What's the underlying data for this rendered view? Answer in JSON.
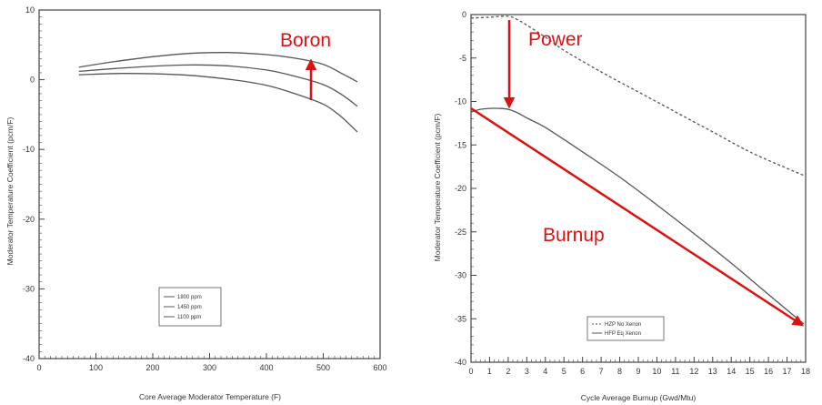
{
  "colors": {
    "annotation": "#dd1111",
    "curve": "#555555",
    "axis": "#444444"
  },
  "chart_data": [
    {
      "type": "line",
      "title": "",
      "xlabel": "Core Average Moderator Temperature (F)",
      "ylabel": "Moderator Temperature Coefficient (pcm/F)",
      "xlim": [
        0,
        600
      ],
      "ylim": [
        -40,
        10
      ],
      "xticks": [
        0,
        100,
        200,
        300,
        400,
        500,
        600
      ],
      "yticks": [
        -40,
        -30,
        -20,
        -10,
        0,
        10
      ],
      "legend_position": "bottom-center",
      "series": [
        {
          "name": "1800 ppm",
          "x": [
            70,
            150,
            250,
            330,
            400,
            450,
            500,
            530,
            560
          ],
          "y": [
            1.8,
            2.8,
            3.7,
            3.9,
            3.6,
            3.1,
            2.2,
            1.0,
            -0.3
          ]
        },
        {
          "name": "1450 ppm",
          "x": [
            70,
            150,
            250,
            330,
            400,
            450,
            500,
            530,
            560
          ],
          "y": [
            1.2,
            1.7,
            2.1,
            2.0,
            1.4,
            0.5,
            -0.7,
            -2.0,
            -3.8
          ]
        },
        {
          "name": "1100 ppm",
          "x": [
            70,
            150,
            250,
            330,
            400,
            450,
            500,
            530,
            560
          ],
          "y": [
            0.7,
            0.9,
            0.7,
            0.1,
            -0.8,
            -2.0,
            -3.5,
            -5.2,
            -7.5
          ]
        }
      ],
      "annotations": [
        {
          "text": "Boron"
        }
      ]
    },
    {
      "type": "line",
      "title": "",
      "xlabel": "Cycle Average Burnup (Gwd/Mtu)",
      "ylabel": "Moderator Temperature Coefficient (pcm/F)",
      "xlim": [
        0,
        18
      ],
      "ylim": [
        -40,
        0
      ],
      "xticks": [
        0,
        1,
        2,
        3,
        4,
        5,
        6,
        7,
        8,
        9,
        10,
        11,
        12,
        13,
        14,
        15,
        16,
        17,
        18
      ],
      "yticks": [
        0,
        -5,
        -10,
        -15,
        -20,
        -25,
        -30,
        -35,
        -40
      ],
      "legend_position": "bottom-left",
      "series": [
        {
          "name": "HZP No Xenon",
          "style": "dashed",
          "x": [
            0,
            1,
            2,
            2.5,
            3,
            4,
            5,
            7,
            9,
            11,
            13,
            15,
            17,
            17.9
          ],
          "y": [
            -0.4,
            -0.3,
            -0.2,
            -0.6,
            -1.2,
            -2.6,
            -4.1,
            -6.6,
            -8.9,
            -11.2,
            -13.5,
            -15.8,
            -17.7,
            -18.5
          ]
        },
        {
          "name": "HFP Eq Xenon",
          "style": "solid",
          "x": [
            0,
            0.5,
            1,
            1.5,
            2,
            2.5,
            3,
            4,
            6,
            8,
            10,
            12,
            14,
            16,
            17.9
          ],
          "y": [
            -11.2,
            -10.9,
            -10.8,
            -10.8,
            -10.9,
            -11.3,
            -11.9,
            -13.0,
            -15.8,
            -18.7,
            -21.9,
            -25.2,
            -28.6,
            -32.2,
            -35.6
          ]
        }
      ],
      "annotations": [
        {
          "text": "Power"
        },
        {
          "text": "Burnup"
        }
      ]
    }
  ]
}
